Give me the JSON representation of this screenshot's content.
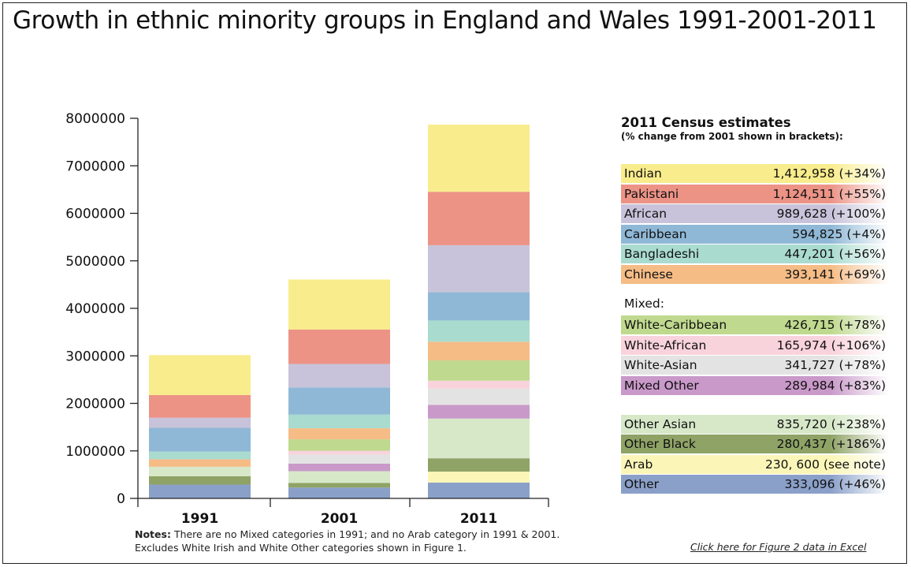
{
  "title": "Growth in ethnic minority groups in England and Wales 1991-2001-2011",
  "chart_data": {
    "type": "bar",
    "stacked": true,
    "title": "Growth in ethnic minority groups in England and Wales 1991-2001-2011",
    "categories": [
      "1991",
      "2001",
      "2011"
    ],
    "ylim": [
      0,
      8000000
    ],
    "yticks": [
      0,
      1000000,
      2000000,
      3000000,
      4000000,
      5000000,
      6000000,
      7000000,
      8000000
    ],
    "ytick_labels": [
      "0",
      "1000000",
      "2000000",
      "3000000",
      "4000000",
      "5000000",
      "6000000",
      "7000000",
      "8000000"
    ],
    "grid": false,
    "legend_position": "right",
    "series": [
      {
        "name": "Other",
        "color": "#8aa0c9",
        "values": [
          290000,
          228000,
          333096
        ]
      },
      {
        "name": "Arab",
        "color": "#fbf6b8",
        "values": [
          0,
          0,
          230600
        ]
      },
      {
        "name": "Other Black",
        "color": "#8fa366",
        "values": [
          178000,
          98000,
          280437
        ]
      },
      {
        "name": "Other Asian",
        "color": "#d7e8c9",
        "values": [
          198000,
          247000,
          835720
        ]
      },
      {
        "name": "Mixed Other",
        "color": "#c999c9",
        "values": [
          0,
          158000,
          289984
        ]
      },
      {
        "name": "White-Asian",
        "color": "#e3e3e3",
        "values": [
          0,
          192000,
          341727
        ]
      },
      {
        "name": "White-African",
        "color": "#f9d3dc",
        "values": [
          0,
          80000,
          165974
        ]
      },
      {
        "name": "White-Caribbean",
        "color": "#bfd98e",
        "values": [
          0,
          240000,
          426715
        ]
      },
      {
        "name": "Chinese",
        "color": "#f5bc86",
        "values": [
          157000,
          233000,
          393141
        ]
      },
      {
        "name": "Bangladeshi",
        "color": "#a9dbcf",
        "values": [
          163000,
          287000,
          447201
        ]
      },
      {
        "name": "Caribbean",
        "color": "#8fb8d6",
        "values": [
          500000,
          572000,
          594825
        ]
      },
      {
        "name": "African",
        "color": "#c8c3da",
        "values": [
          212000,
          495000,
          989628
        ]
      },
      {
        "name": "Pakistani",
        "color": "#ec9386",
        "values": [
          477000,
          725000,
          1124511
        ]
      },
      {
        "name": "Indian",
        "color": "#f9ec8c",
        "values": [
          840000,
          1052000,
          1412958
        ]
      }
    ]
  },
  "legend": {
    "title": "2011 Census estimates",
    "subtitle": "(% change from 2001 shown in brackets):",
    "mixed_label": "Mixed:",
    "rows": [
      {
        "label": "Indian",
        "value": "1,412,958 (+34%)",
        "color": "#f9ec8c"
      },
      {
        "label": "Pakistani",
        "value": "1,124,511 (+55%)",
        "color": "#ec9386"
      },
      {
        "label": "African",
        "value": "989,628 (+100%)",
        "color": "#c8c3da"
      },
      {
        "label": "Caribbean",
        "value": "594,825 (+4%)",
        "color": "#8fb8d6"
      },
      {
        "label": "Bangladeshi",
        "value": "447,201 (+56%)",
        "color": "#a9dbcf"
      },
      {
        "label": "Chinese",
        "value": "393,141 (+69%)",
        "color": "#f5bc86"
      },
      {
        "label": "White-Caribbean",
        "value": "426,715 (+78%)",
        "color": "#bfd98e"
      },
      {
        "label": "White-African",
        "value": "165,974 (+106%)",
        "color": "#f9d3dc"
      },
      {
        "label": "White-Asian",
        "value": "341,727 (+78%)",
        "color": "#e3e3e3"
      },
      {
        "label": "Mixed Other",
        "value": "289,984 (+83%)",
        "color": "#c999c9"
      },
      {
        "label": "Other Asian",
        "value": "835,720 (+238%)",
        "color": "#d7e8c9"
      },
      {
        "label": "Other Black",
        "value": "280,437 (+186%)",
        "color": "#8fa366"
      },
      {
        "label": "Arab",
        "value": "230, 600 (see note)",
        "color": "#fbf6b8"
      },
      {
        "label": "Other",
        "value": "333,096 (+46%)",
        "color": "#8aa0c9"
      }
    ]
  },
  "notes": {
    "label": "Notes:",
    "line1": "There are no Mixed categories in 1991; and no Arab category in 1991 & 2001.",
    "line2": "Excludes White Irish and White Other categories shown in Figure 1."
  },
  "excel_link": "Click here for Figure 2 data in Excel"
}
